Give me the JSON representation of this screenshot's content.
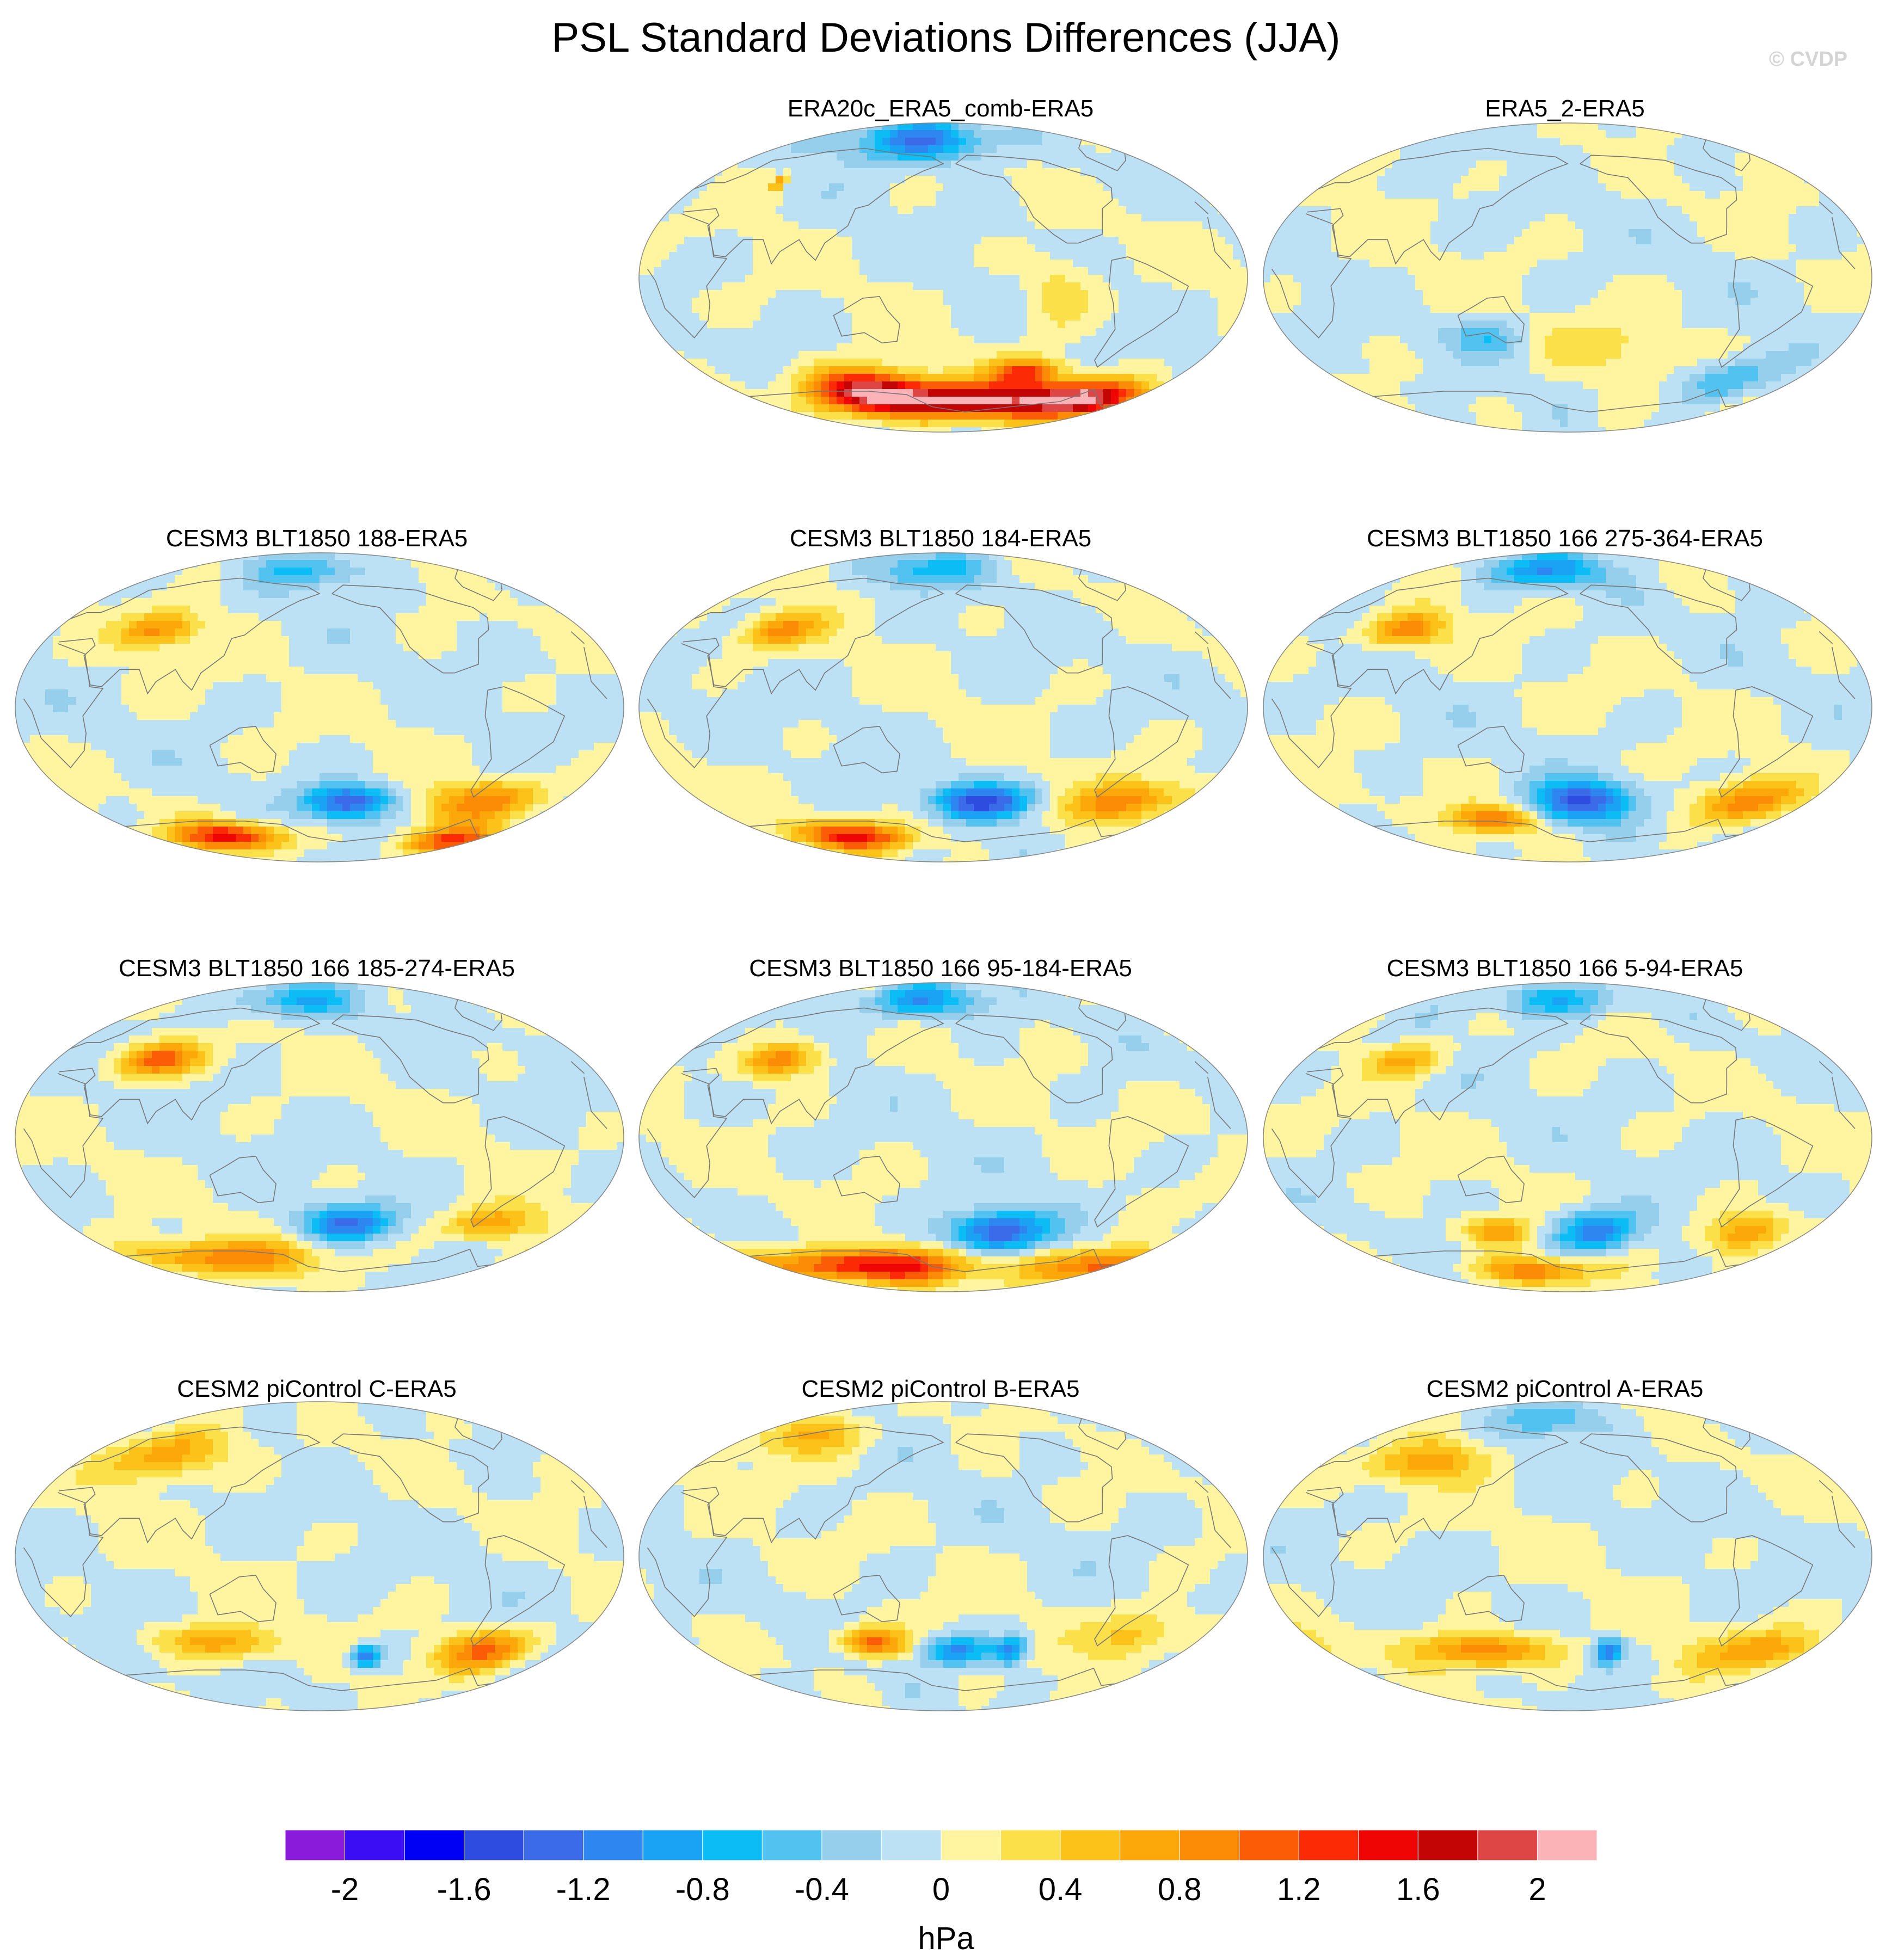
{
  "title": "PSL Standard Deviations Differences (JJA)",
  "watermark": "© CVDP",
  "colors": {
    "land_line": "#777777",
    "border": "#888888"
  },
  "chart_data": {
    "type": "heatmap",
    "projection": "robinson",
    "units": "hPa",
    "panels": [
      {
        "title": "ERA20c_ERA5_comb-ERA5",
        "blobs": [
          {
            "lon": 200,
            "lat": -72,
            "v": 2.0,
            "rlon": 95,
            "rlat": 10
          },
          {
            "lon": 120,
            "lat": -65,
            "v": 1.6,
            "rlon": 45,
            "rlat": 12
          },
          {
            "lon": 300,
            "lat": -70,
            "v": 1.6,
            "rlon": 45,
            "rlat": 10
          },
          {
            "lon": 240,
            "lat": -55,
            "v": 1.2,
            "rlon": 25,
            "rlat": 8
          },
          {
            "lon": 60,
            "lat": 55,
            "v": 1.0,
            "rlon": 4,
            "rlat": 4
          },
          {
            "lon": 160,
            "lat": 80,
            "v": -1.2,
            "rlon": 60,
            "rlat": 12
          },
          {
            "lon": 250,
            "lat": -10,
            "v": 0.4,
            "rlon": 20,
            "rlat": 20
          }
        ]
      },
      {
        "title": "ERA5_2-ERA5",
        "blobs": [
          {
            "lon": 300,
            "lat": -60,
            "v": -0.6,
            "rlon": 30,
            "rlat": 12
          },
          {
            "lon": 130,
            "lat": -35,
            "v": -0.5,
            "rlon": 25,
            "rlat": 10
          },
          {
            "lon": 200,
            "lat": -40,
            "v": 0.3,
            "rlon": 40,
            "rlat": 15
          }
        ]
      },
      {
        "title": "CESM3 BLT1850 188-ERA5",
        "blobs": [
          {
            "lon": 200,
            "lat": -55,
            "v": -1.4,
            "rlon": 30,
            "rlat": 10
          },
          {
            "lon": 70,
            "lat": 45,
            "v": 0.9,
            "rlon": 25,
            "rlat": 10
          },
          {
            "lon": 300,
            "lat": -55,
            "v": 0.9,
            "rlon": 40,
            "rlat": 12
          },
          {
            "lon": 100,
            "lat": -75,
            "v": 1.4,
            "rlon": 50,
            "rlat": 8
          },
          {
            "lon": 300,
            "lat": -78,
            "v": 1.2,
            "rlon": 40,
            "rlat": 8
          },
          {
            "lon": 170,
            "lat": 80,
            "v": -0.6,
            "rlon": 50,
            "rlat": 10
          }
        ]
      },
      {
        "title": "CESM3 BLT1850 184-ERA5",
        "blobs": [
          {
            "lon": 210,
            "lat": -55,
            "v": -1.4,
            "rlon": 35,
            "rlat": 10
          },
          {
            "lon": 70,
            "lat": 45,
            "v": 0.9,
            "rlon": 25,
            "rlat": 10
          },
          {
            "lon": 310,
            "lat": -55,
            "v": 1.0,
            "rlon": 35,
            "rlat": 12
          },
          {
            "lon": 100,
            "lat": -75,
            "v": 1.4,
            "rlon": 50,
            "rlat": 8
          },
          {
            "lon": 170,
            "lat": 80,
            "v": -0.7,
            "rlon": 50,
            "rlat": 10
          }
        ]
      },
      {
        "title": "CESM3 BLT1850 166 275-364-ERA5",
        "blobs": [
          {
            "lon": 190,
            "lat": -55,
            "v": -1.4,
            "rlon": 35,
            "rlat": 12
          },
          {
            "lon": 70,
            "lat": 45,
            "v": 1.0,
            "rlon": 25,
            "rlat": 10
          },
          {
            "lon": 310,
            "lat": -55,
            "v": 0.9,
            "rlon": 35,
            "rlat": 12
          },
          {
            "lon": 120,
            "lat": -65,
            "v": 1.1,
            "rlon": 30,
            "rlat": 8
          },
          {
            "lon": 160,
            "lat": 80,
            "v": -1.0,
            "rlon": 50,
            "rlat": 10
          }
        ]
      },
      {
        "title": "CESM3 BLT1850 166 185-274-ERA5",
        "blobs": [
          {
            "lon": 200,
            "lat": -50,
            "v": -1.2,
            "rlon": 30,
            "rlat": 10
          },
          {
            "lon": 70,
            "lat": 45,
            "v": 1.1,
            "rlon": 30,
            "rlat": 10
          },
          {
            "lon": 300,
            "lat": -50,
            "v": 0.8,
            "rlon": 30,
            "rlat": 10
          },
          {
            "lon": 100,
            "lat": -70,
            "v": 1.0,
            "rlon": 70,
            "rlat": 10
          },
          {
            "lon": 160,
            "lat": 80,
            "v": -0.8,
            "rlon": 50,
            "rlat": 10
          }
        ]
      },
      {
        "title": "CESM3 BLT1850 166 95-184-ERA5",
        "blobs": [
          {
            "lon": 220,
            "lat": -55,
            "v": -1.4,
            "rlon": 35,
            "rlat": 12
          },
          {
            "lon": 70,
            "lat": 45,
            "v": 1.0,
            "rlon": 25,
            "rlat": 10
          },
          {
            "lon": 120,
            "lat": -75,
            "v": 1.6,
            "rlon": 80,
            "rlat": 10
          },
          {
            "lon": 320,
            "lat": -75,
            "v": 1.2,
            "rlon": 60,
            "rlat": 10
          },
          {
            "lon": 160,
            "lat": 80,
            "v": -1.0,
            "rlon": 50,
            "rlat": 10
          }
        ]
      },
      {
        "title": "CESM3 BLT1850 166 5-94-ERA5",
        "blobs": [
          {
            "lon": 200,
            "lat": -55,
            "v": -1.2,
            "rlon": 30,
            "rlat": 12
          },
          {
            "lon": 70,
            "lat": 45,
            "v": 0.7,
            "rlon": 25,
            "rlat": 10
          },
          {
            "lon": 130,
            "lat": -55,
            "v": 0.8,
            "rlon": 25,
            "rlat": 8
          },
          {
            "lon": 310,
            "lat": -55,
            "v": 0.8,
            "rlon": 30,
            "rlat": 12
          },
          {
            "lon": 150,
            "lat": -78,
            "v": 1.0,
            "rlon": 50,
            "rlat": 8
          },
          {
            "lon": 170,
            "lat": 80,
            "v": -0.8,
            "rlon": 50,
            "rlat": 10
          }
        ]
      },
      {
        "title": "CESM2 piControl C-ERA5",
        "blobs": [
          {
            "lon": 215,
            "lat": -58,
            "v": -1.2,
            "rlon": 12,
            "rlat": 7
          },
          {
            "lon": 70,
            "lat": 60,
            "v": 0.8,
            "rlon": 40,
            "rlat": 15
          },
          {
            "lon": 300,
            "lat": -55,
            "v": 1.0,
            "rlon": 35,
            "rlat": 12
          },
          {
            "lon": 110,
            "lat": -50,
            "v": 0.8,
            "rlon": 40,
            "rlat": 10
          }
        ]
      },
      {
        "title": "CESM2 piControl B-ERA5",
        "blobs": [
          {
            "lon": 190,
            "lat": -55,
            "v": -1.0,
            "rlon": 25,
            "rlat": 8
          },
          {
            "lon": 230,
            "lat": -55,
            "v": -1.0,
            "rlon": 12,
            "rlat": 8
          },
          {
            "lon": 130,
            "lat": -50,
            "v": 1.1,
            "rlon": 25,
            "rlat": 8
          },
          {
            "lon": 70,
            "lat": 70,
            "v": 0.7,
            "rlon": 40,
            "rlat": 12
          },
          {
            "lon": 310,
            "lat": -45,
            "v": 0.6,
            "rlon": 30,
            "rlat": 15
          }
        ]
      },
      {
        "title": "CESM2 piControl A-ERA5",
        "blobs": [
          {
            "lon": 210,
            "lat": -55,
            "v": -1.2,
            "rlon": 10,
            "rlat": 7
          },
          {
            "lon": 120,
            "lat": -55,
            "v": 1.0,
            "rlon": 50,
            "rlat": 10
          },
          {
            "lon": 320,
            "lat": -55,
            "v": 0.8,
            "rlon": 40,
            "rlat": 12
          },
          {
            "lon": 80,
            "lat": 55,
            "v": 0.7,
            "rlon": 40,
            "rlat": 12
          },
          {
            "lon": 165,
            "lat": 80,
            "v": -0.6,
            "rlon": 40,
            "rlat": 10
          }
        ]
      }
    ],
    "colorbar": {
      "levels": [
        -2.2,
        -2.0,
        -1.8,
        -1.6,
        -1.4,
        -1.2,
        -1.0,
        -0.8,
        -0.6,
        -0.4,
        -0.2,
        0.0,
        0.2,
        0.4,
        0.6,
        0.8,
        1.0,
        1.2,
        1.4,
        1.6,
        1.8,
        2.0,
        2.2
      ],
      "colors": [
        "#8a1bdb",
        "#3b0df5",
        "#0000f5",
        "#2e4de0",
        "#3b6be8",
        "#2e86f0",
        "#1aa3f5",
        "#0bbcf5",
        "#52c2f0",
        "#96cfec",
        "#bde1f4",
        "#fff5a0",
        "#fce04a",
        "#fcc21a",
        "#fca80a",
        "#fc8c05",
        "#fc5c05",
        "#fc2a05",
        "#f00505",
        "#c40505",
        "#de4646",
        "#fcb3b8"
      ],
      "tick_labels": [
        "-2",
        "-1.6",
        "-1.2",
        "-0.8",
        "-0.4",
        "0",
        "0.4",
        "0.8",
        "1.2",
        "1.6",
        "2"
      ],
      "tick_values": [
        -2.0,
        -1.6,
        -1.2,
        -0.8,
        -0.4,
        0.0,
        0.4,
        0.8,
        1.2,
        1.6,
        2.0
      ],
      "units": "hPa"
    }
  }
}
